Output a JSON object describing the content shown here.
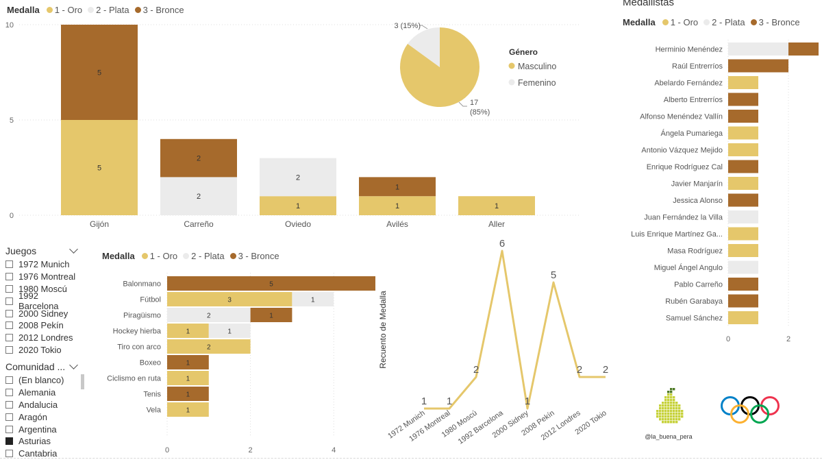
{
  "colors": {
    "oro": "#E5C76B",
    "plata": "#EBEBEB",
    "bronce": "#A66A2C",
    "line": "#E5C76B"
  },
  "medal_legend": {
    "title": "Medalla",
    "items": [
      "1 - Oro",
      "2 - Plata",
      "3 - Bronce"
    ]
  },
  "medallistas_title": "Medallistas",
  "slicers": {
    "juegos": {
      "title": "Juegos",
      "items": [
        "1972 Munich",
        "1976 Montreal",
        "1980 Moscú",
        "1992 Barcelona",
        "2000 Sidney",
        "2008 Pekín",
        "2012 Londres",
        "2020 Tokio"
      ]
    },
    "comunidad": {
      "title": "Comunidad ...",
      "items": [
        "(En blanco)",
        "Alemania",
        "Andalucia",
        "Aragón",
        "Argentina",
        "Asturias",
        "Cantabria"
      ],
      "selected": "Asturias"
    }
  },
  "logo": {
    "handle": "@la_buena_pera"
  },
  "chart_data": [
    {
      "type": "bar",
      "orientation": "vertical-stacked",
      "categories": [
        "Gijón",
        "Carreño",
        "Oviedo",
        "Avilés",
        "Aller"
      ],
      "series": [
        {
          "name": "1 - Oro",
          "values": [
            5,
            0,
            1,
            1,
            1
          ]
        },
        {
          "name": "2 - Plata",
          "values": [
            0,
            2,
            2,
            0,
            0
          ]
        },
        {
          "name": "3 - Bronce",
          "values": [
            5,
            2,
            0,
            1,
            0
          ]
        }
      ],
      "yticks": [
        "0",
        "5",
        "10"
      ],
      "ylim": [
        0,
        10
      ],
      "legend": "top-left"
    },
    {
      "type": "pie",
      "legend_title": "Género",
      "slices": [
        {
          "name": "Masculino",
          "value": 17,
          "label": "17",
          "pct": "(85%)"
        },
        {
          "name": "Femenino",
          "value": 3,
          "label": "3 (15%)"
        }
      ]
    },
    {
      "type": "bar",
      "orientation": "horizontal-stacked",
      "categories": [
        "Balonmano",
        "Fútbol",
        "Piragüismo",
        "Hockey hierba",
        "Tiro con arco",
        "Boxeo",
        "Ciclismo en ruta",
        "Tenis",
        "Vela"
      ],
      "series": [
        {
          "name": "1 - Oro",
          "values": [
            0,
            3,
            0,
            1,
            2,
            0,
            1,
            0,
            1
          ]
        },
        {
          "name": "2 - Plata",
          "values": [
            0,
            1,
            2,
            1,
            0,
            0,
            0,
            0,
            0
          ]
        },
        {
          "name": "3 - Bronce",
          "values": [
            5,
            0,
            1,
            0,
            0,
            1,
            0,
            1,
            0
          ]
        }
      ],
      "xticks": [
        "0",
        "2",
        "4"
      ],
      "xlim": [
        0,
        5
      ],
      "legend": "top-left"
    },
    {
      "type": "line",
      "x": [
        "1972 Munich",
        "1976 Montreal",
        "1980 Moscú",
        "1992 Barcelona",
        "2000 Sidney",
        "2008 Pekín",
        "2012 Londres",
        "2020 Tokio"
      ],
      "values": [
        1,
        1,
        2,
        6,
        1,
        5,
        2,
        2
      ],
      "ylabel": "Recuento de Medalla",
      "ylim": [
        0,
        6
      ]
    },
    {
      "type": "bar",
      "orientation": "horizontal",
      "title": "Medallistas",
      "categories": [
        "Herminio Menéndez",
        "Raúl Entrerríos",
        "Abelardo Fernández",
        "Alberto Entrerríos",
        "Alfonso Menéndez Vallín",
        "Ángela Pumariega",
        "Antonio Vázquez Mejido",
        "Enrique Rodríguez Cal",
        "Javier Manjarín",
        "Jessica Alonso",
        "Juan Fernández la Villa",
        "Luis Enrique Martínez Ga...",
        "Masa Rodríguez",
        "Miguel Ángel Angulo",
        "Pablo Carreño",
        "Rubén Garabaya",
        "Samuel Sánchez"
      ],
      "series": [
        {
          "name": "1 - Oro",
          "values": [
            0,
            0,
            1,
            0,
            0,
            1,
            1,
            0,
            1,
            0,
            0,
            1,
            1,
            0,
            0,
            0,
            1
          ]
        },
        {
          "name": "2 - Plata",
          "values": [
            2,
            0,
            0,
            0,
            0,
            0,
            0,
            0,
            0,
            0,
            1,
            0,
            0,
            1,
            0,
            0,
            0
          ]
        },
        {
          "name": "3 - Bronce",
          "values": [
            1,
            2,
            0,
            1,
            1,
            0,
            0,
            1,
            0,
            1,
            0,
            0,
            0,
            0,
            1,
            1,
            0
          ]
        }
      ],
      "xticks": [
        "0",
        "2"
      ],
      "legend": "top-left"
    }
  ]
}
